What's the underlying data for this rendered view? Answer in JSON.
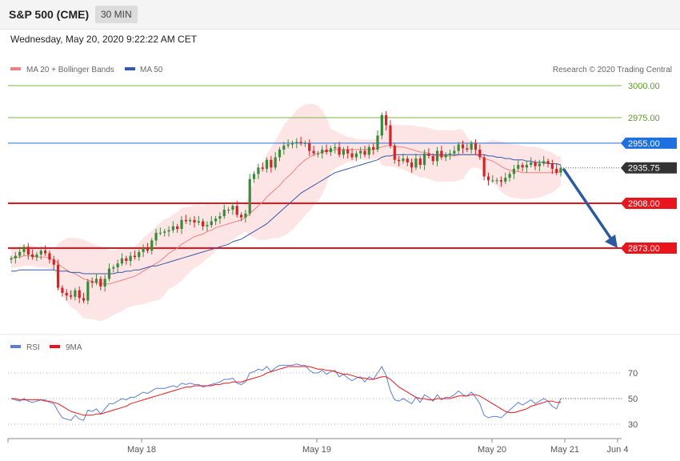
{
  "header": {
    "instrument": "S&P 500 (CME)",
    "timeframe": "30 MIN",
    "timestamp": "Wednesday, May 20, 2020 9:22:22 AM CET"
  },
  "legend": {
    "ma20_bb": "MA 20 + Bollinger Bands",
    "ma50": "MA 50",
    "credit": "Research © 2020 Trading Central"
  },
  "rsi_legend": {
    "rsi": "RSI",
    "ma9": "9MA"
  },
  "colors": {
    "bull": "#3a8a3a",
    "bear": "#d32424",
    "ma20": "#f08080",
    "bollinger_fill": "#fde0e0",
    "ma50": "#3858a8",
    "red_level": "#e8161c",
    "green_level": "#7ab648",
    "blue_level": "#1e6fe0",
    "current_price": "#333333",
    "arrow": "#2c5aa0",
    "rsi_line": "#5b7fd6",
    "rsi_ma": "#e8161c"
  },
  "levels": [
    {
      "label": "3000.00",
      "type": "green"
    },
    {
      "label": "2975.00",
      "type": "green"
    },
    {
      "label": "2955.00",
      "type": "blue"
    },
    {
      "label": "2935.75",
      "type": "current"
    },
    {
      "label": "2908.00",
      "type": "red"
    },
    {
      "label": "2873.00",
      "type": "red"
    }
  ],
  "x_labels": [
    "May 18",
    "May 19",
    "May 20",
    "May 21",
    "Jun 4"
  ],
  "rsi_ticks": [
    "70",
    "50",
    "30"
  ],
  "chart_data": [
    {
      "type": "candlestick",
      "title": "S&P 500 (CME)",
      "timeframe": "30 MIN",
      "ylim": [
        2833,
        3006
      ],
      "levels": [
        3000.0,
        2975.0,
        2955.0,
        2935.75,
        2908.0,
        2873.0
      ],
      "x_labels": [
        "May 18",
        "May 19",
        "May 20",
        "May 21",
        "Jun 4"
      ],
      "close": [
        2865,
        2867,
        2870,
        2874,
        2868,
        2866,
        2868,
        2871,
        2869,
        2864,
        2860,
        2842,
        2838,
        2836,
        2835,
        2840,
        2834,
        2832,
        2847,
        2846,
        2849,
        2843,
        2849,
        2857,
        2858,
        2861,
        2865,
        2863,
        2867,
        2866,
        2870,
        2873,
        2871,
        2879,
        2885,
        2885,
        2886,
        2887,
        2890,
        2888,
        2895,
        2894,
        2895,
        2893,
        2894,
        2890,
        2891,
        2894,
        2896,
        2898,
        2903,
        2903,
        2906,
        2899,
        2897,
        2900,
        2927,
        2931,
        2936,
        2935,
        2942,
        2936,
        2944,
        2950,
        2953,
        2954,
        2955,
        2956,
        2955,
        2955,
        2949,
        2947,
        2947,
        2950,
        2948,
        2951,
        2952,
        2946,
        2950,
        2947,
        2944,
        2947,
        2949,
        2946,
        2952,
        2950,
        2961,
        2977,
        2969,
        2953,
        2942,
        2941,
        2943,
        2940,
        2936,
        2943,
        2938,
        2947,
        2945,
        2941,
        2949,
        2944,
        2946,
        2947,
        2949,
        2954,
        2951,
        2950,
        2955,
        2950,
        2944,
        2929,
        2926,
        2926,
        2926,
        2925,
        2928,
        2931,
        2935,
        2938,
        2936,
        2938,
        2940,
        2937,
        2939,
        2941,
        2939,
        2935,
        2932,
        2935.75
      ],
      "ma20": [
        2865,
        2866,
        2866,
        2867,
        2867,
        2867,
        2866,
        2866,
        2866,
        2865,
        2864,
        2861,
        2858,
        2856,
        2854,
        2853,
        2851,
        2849,
        2848,
        2847,
        2846,
        2845,
        2845,
        2845,
        2846,
        2847,
        2848,
        2849,
        2850,
        2851,
        2853,
        2855,
        2857,
        2859,
        2861,
        2863,
        2866,
        2869,
        2871,
        2873,
        2876,
        2878,
        2880,
        2882,
        2883,
        2884,
        2886,
        2887,
        2889,
        2890,
        2891,
        2892,
        2893,
        2894,
        2895,
        2897,
        2900,
        2903,
        2906,
        2909,
        2913,
        2916,
        2919,
        2922,
        2926,
        2929,
        2932,
        2936,
        2939,
        2942,
        2944,
        2946,
        2947,
        2948,
        2949,
        2949,
        2950,
        2950,
        2950,
        2950,
        2950,
        2950,
        2950,
        2950,
        2950,
        2950,
        2951,
        2952,
        2953,
        2953,
        2953,
        2952,
        2952,
        2951,
        2950,
        2949,
        2948,
        2948,
        2947,
        2946,
        2945,
        2945,
        2945,
        2945,
        2945,
        2946,
        2946,
        2946,
        2946,
        2946,
        2945,
        2943,
        2942,
        2941,
        2939,
        2937,
        2935,
        2934,
        2933,
        2933,
        2932,
        2932,
        2932,
        2932,
        2932,
        2932,
        2932,
        2932,
        2932,
        2933
      ],
      "ma50": [
        2855,
        2855,
        2856,
        2856,
        2856,
        2856,
        2856,
        2856,
        2856,
        2856,
        2856,
        2855,
        2855,
        2855,
        2854,
        2854,
        2854,
        2853,
        2853,
        2853,
        2853,
        2853,
        2853,
        2853,
        2853,
        2854,
        2854,
        2855,
        2855,
        2856,
        2856,
        2857,
        2858,
        2859,
        2859,
        2860,
        2861,
        2862,
        2863,
        2864,
        2865,
        2866,
        2867,
        2868,
        2869,
        2870,
        2871,
        2872,
        2873,
        2874,
        2875,
        2876,
        2878,
        2879,
        2880,
        2882,
        2884,
        2886,
        2888,
        2890,
        2892,
        2895,
        2898,
        2901,
        2904,
        2907,
        2910,
        2913,
        2916,
        2918,
        2920,
        2922,
        2924,
        2926,
        2928,
        2930,
        2932,
        2933,
        2934,
        2935,
        2936,
        2937,
        2938,
        2939,
        2940,
        2941,
        2942,
        2944,
        2945,
        2945,
        2946,
        2946,
        2946,
        2946,
        2946,
        2946,
        2946,
        2946,
        2946,
        2946,
        2946,
        2946,
        2946,
        2946,
        2946,
        2946,
        2946,
        2946,
        2946,
        2946,
        2946,
        2946,
        2945,
        2945,
        2944,
        2944,
        2943,
        2943,
        2942,
        2942,
        2942,
        2941,
        2941,
        2940,
        2940,
        2940,
        2939,
        2939,
        2939,
        2938
      ]
    },
    {
      "type": "line",
      "title": "RSI",
      "ylim": [
        20,
        80
      ],
      "ticks": [
        70,
        50,
        30
      ],
      "series": [
        {
          "name": "RSI",
          "values": [
            50,
            49,
            48,
            50,
            48,
            47,
            48,
            49,
            49,
            47,
            46,
            40,
            35,
            34,
            33,
            37,
            34,
            33,
            41,
            40,
            42,
            38,
            42,
            46,
            46,
            48,
            50,
            49,
            51,
            51,
            53,
            55,
            54,
            56,
            58,
            58,
            58,
            59,
            60,
            59,
            62,
            61,
            62,
            61,
            61,
            59,
            60,
            61,
            62,
            63,
            65,
            65,
            66,
            62,
            61,
            63,
            70,
            71,
            73,
            72,
            75,
            71,
            74,
            76,
            76,
            76,
            76,
            77,
            76,
            76,
            72,
            70,
            70,
            72,
            69,
            71,
            72,
            67,
            69,
            66,
            64,
            66,
            67,
            63,
            67,
            65,
            70,
            75,
            68,
            56,
            49,
            48,
            50,
            48,
            46,
            51,
            47,
            53,
            51,
            48,
            53,
            49,
            51,
            51,
            53,
            56,
            53,
            52,
            55,
            51,
            46,
            37,
            35,
            36,
            36,
            35,
            38,
            41,
            44,
            47,
            45,
            47,
            49,
            46,
            48,
            50,
            48,
            44,
            42,
            50
          ]
        },
        {
          "name": "9MA",
          "values": [
            50,
            50,
            49,
            49,
            49,
            49,
            49,
            49,
            48,
            48,
            47,
            46,
            44,
            42,
            40,
            39,
            38,
            37,
            37,
            37,
            38,
            38,
            39,
            40,
            41,
            42,
            43,
            44,
            46,
            47,
            48,
            49,
            50,
            51,
            52,
            53,
            54,
            55,
            56,
            57,
            58,
            59,
            59,
            60,
            60,
            60,
            60,
            60,
            61,
            61,
            62,
            62,
            63,
            63,
            63,
            64,
            65,
            66,
            67,
            68,
            70,
            71,
            72,
            73,
            74,
            75,
            75,
            75,
            75,
            75,
            75,
            74,
            73,
            73,
            72,
            72,
            71,
            70,
            69,
            69,
            68,
            67,
            66,
            66,
            65,
            65,
            66,
            67,
            67,
            65,
            62,
            59,
            57,
            55,
            53,
            51,
            50,
            50,
            49,
            49,
            50,
            50,
            50,
            50,
            51,
            52,
            52,
            52,
            53,
            53,
            52,
            50,
            48,
            46,
            44,
            42,
            40,
            39,
            39,
            40,
            41,
            42,
            44,
            45,
            46,
            47,
            48,
            48,
            47,
            47
          ]
        }
      ]
    }
  ]
}
